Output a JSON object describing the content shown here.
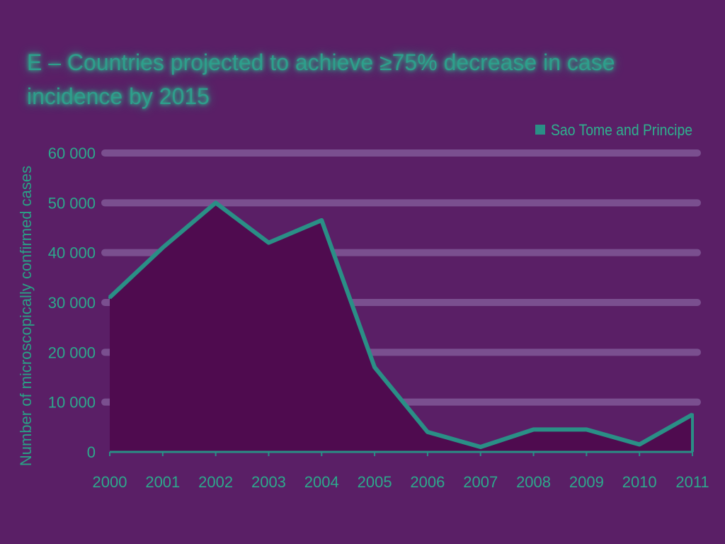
{
  "chart_data": {
    "type": "area",
    "title": "E – Countries projected to achieve ≥75% decrease in case incidence by 2015",
    "xlabel": "",
    "ylabel": "Number of microscopically confirmed cases",
    "categories": [
      "2000",
      "2001",
      "2002",
      "2003",
      "2004",
      "2005",
      "2006",
      "2007",
      "2008",
      "2009",
      "2010",
      "2011"
    ],
    "series": [
      {
        "name": "Sao Tome and Principe",
        "values": [
          31000,
          41000,
          50000,
          42000,
          46500,
          17000,
          4000,
          1000,
          4500,
          4500,
          1500,
          7500
        ],
        "color": "#4f0b4f",
        "line_color": "#2a8f86"
      }
    ],
    "ylim": [
      0,
      60000
    ],
    "yticks": [
      {
        "value": 0,
        "label": "0"
      },
      {
        "value": 10000,
        "label": "10 000"
      },
      {
        "value": 20000,
        "label": "20 000"
      },
      {
        "value": 30000,
        "label": "30 000"
      },
      {
        "value": 40000,
        "label": "40 000"
      },
      {
        "value": 50000,
        "label": "50 000"
      },
      {
        "value": 60000,
        "label": "60 000"
      }
    ],
    "grid": true,
    "legend_position": "top-right"
  },
  "colors": {
    "background": "#5a1f66",
    "gridline": "#7a4f8f",
    "text": "#2da88c"
  }
}
